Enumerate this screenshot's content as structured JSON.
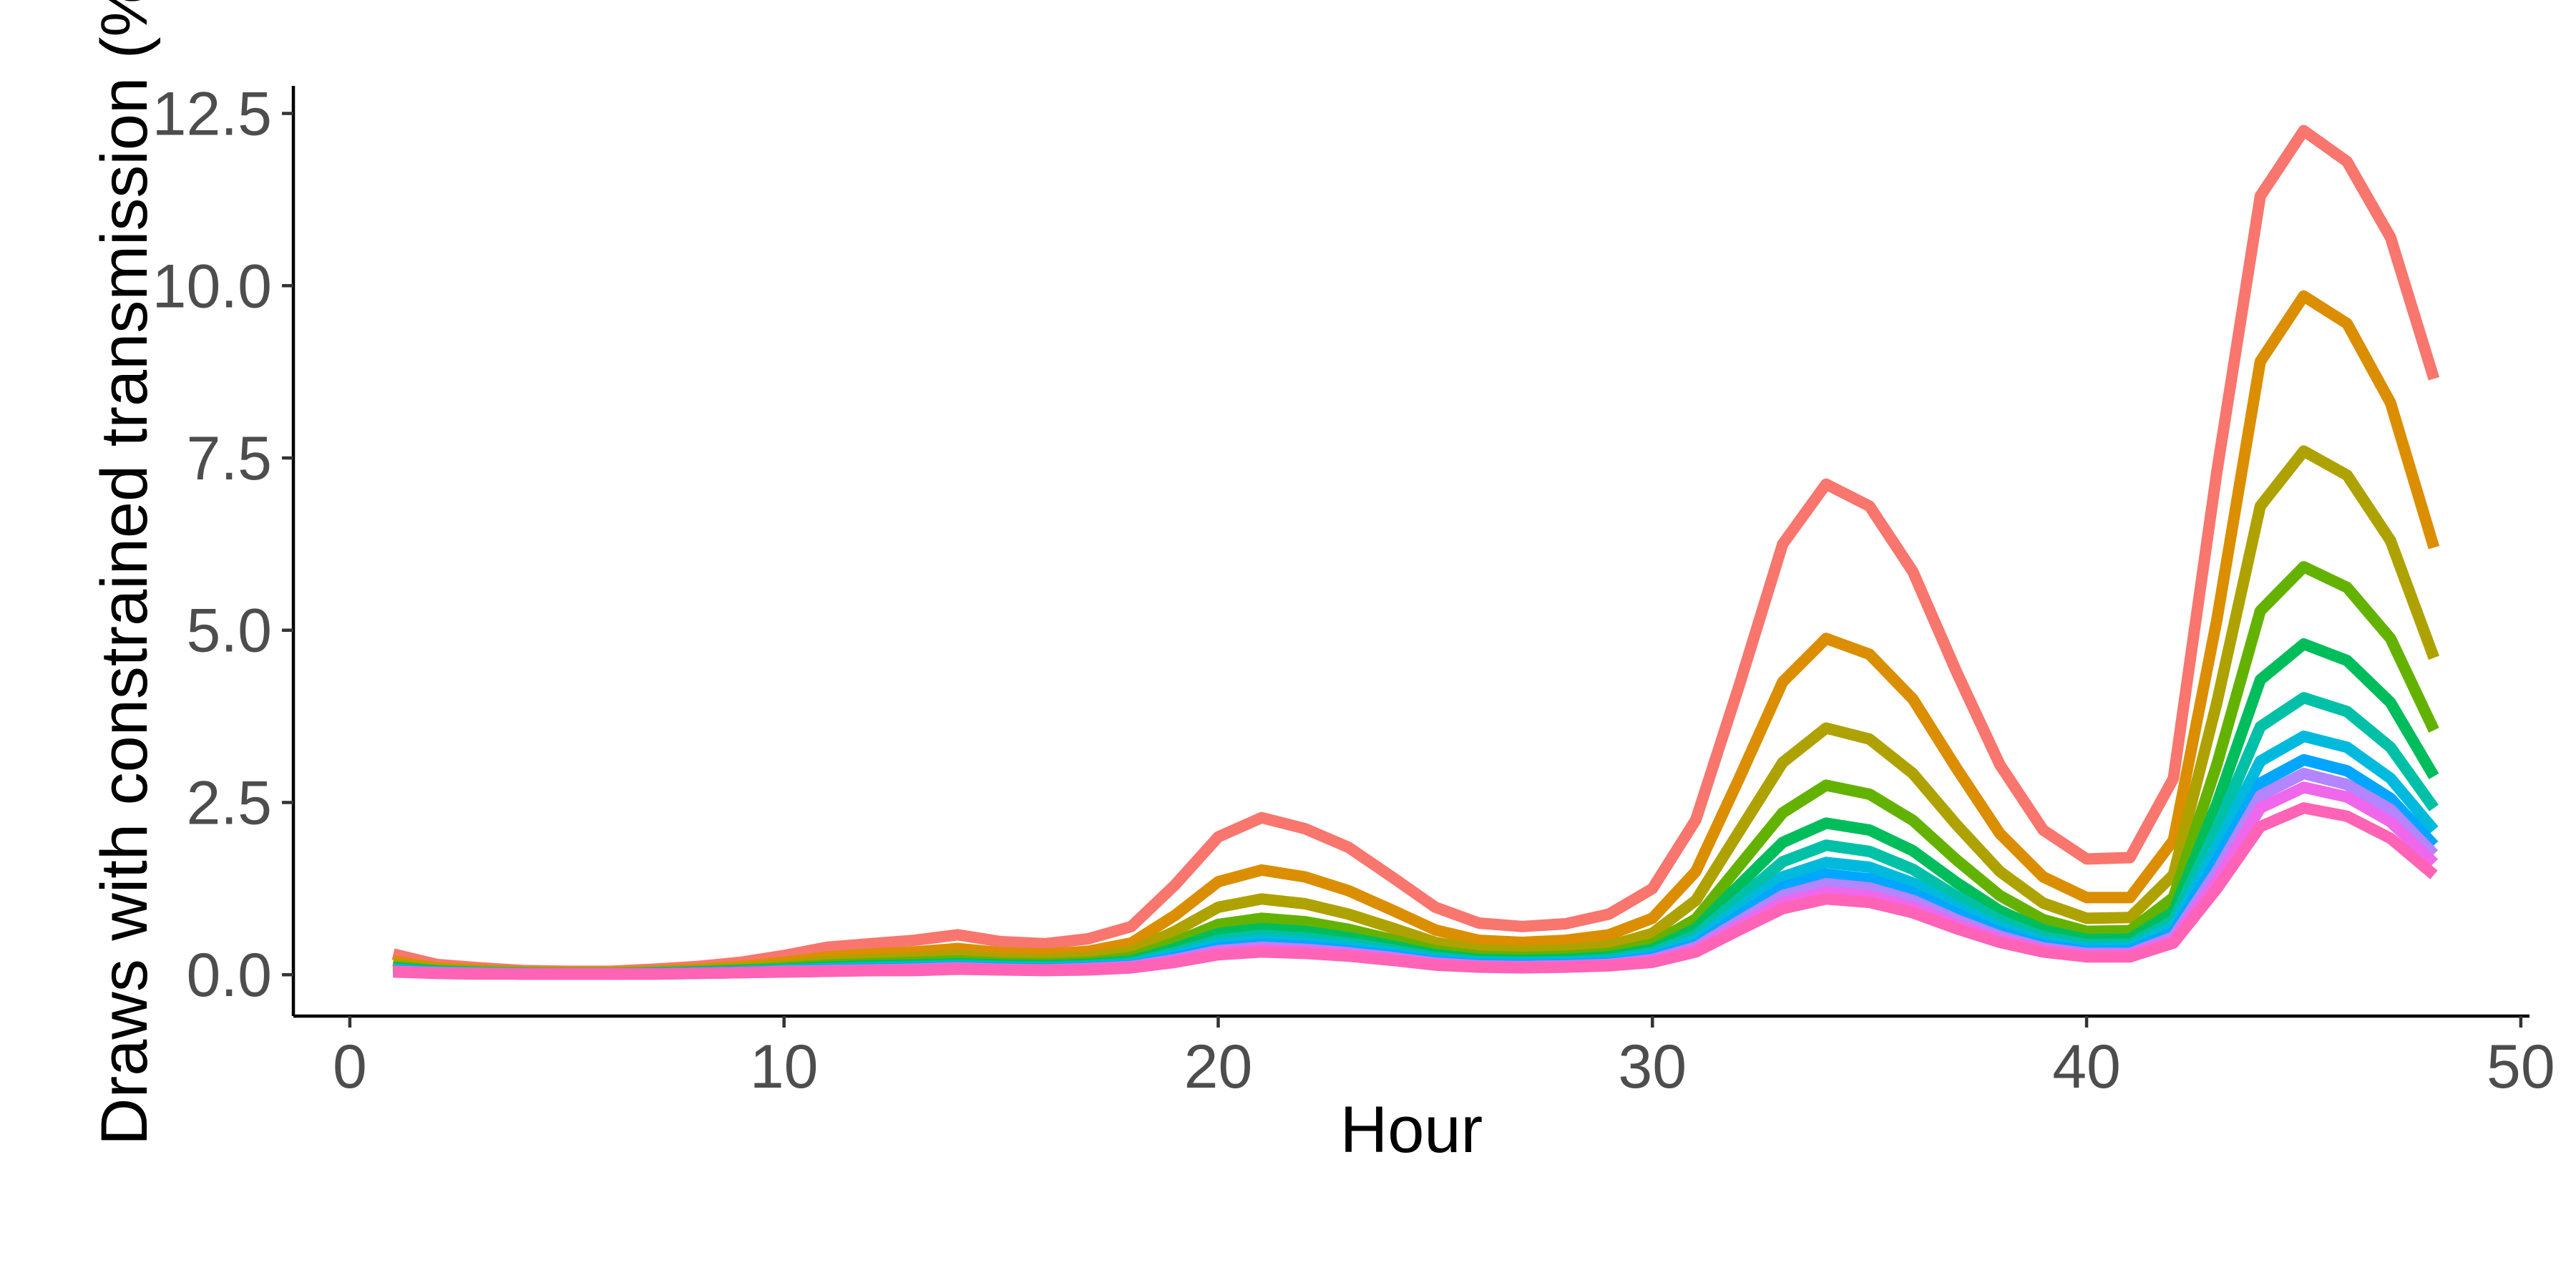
{
  "chart_data": {
    "type": "line",
    "title": "",
    "xlabel": "Hour",
    "ylabel": "Draws with constrained transmission (%)",
    "xlim": [
      -1.3,
      50.2
    ],
    "ylim": [
      -0.6,
      12.9
    ],
    "xticks": [
      0,
      10,
      20,
      30,
      40,
      50
    ],
    "yticks": [
      0.0,
      2.5,
      5.0,
      7.5,
      10.0,
      12.5
    ],
    "xtick_labels": [
      "0",
      "10",
      "20",
      "30",
      "40",
      "50"
    ],
    "ytick_labels": [
      "0.0",
      "2.5",
      "5.0",
      "7.5",
      "10.0",
      "12.5"
    ],
    "grid": false,
    "legend": "none",
    "x": [
      1,
      2,
      3,
      4,
      5,
      6,
      7,
      8,
      9,
      10,
      11,
      12,
      13,
      14,
      15,
      16,
      17,
      18,
      19,
      20,
      21,
      22,
      23,
      24,
      25,
      26,
      27,
      28,
      29,
      30,
      31,
      32,
      33,
      34,
      35,
      36,
      37,
      38,
      39,
      40,
      41,
      42,
      43,
      44,
      45,
      46,
      47,
      48
    ],
    "series": [
      {
        "color": "#F8766D",
        "values": [
          0.3,
          0.15,
          0.1,
          0.06,
          0.05,
          0.05,
          0.08,
          0.12,
          0.18,
          0.28,
          0.4,
          0.45,
          0.5,
          0.58,
          0.48,
          0.45,
          0.52,
          0.7,
          1.3,
          2.0,
          2.28,
          2.12,
          1.85,
          1.42,
          0.98,
          0.75,
          0.7,
          0.74,
          0.88,
          1.25,
          2.25,
          4.2,
          6.25,
          7.12,
          6.8,
          5.85,
          4.4,
          3.05,
          2.1,
          1.68,
          1.7,
          2.85,
          7.3,
          11.3,
          12.25,
          11.8,
          10.7,
          8.65
        ]
      },
      {
        "color": "#DB8E00",
        "values": [
          0.2,
          0.1,
          0.07,
          0.04,
          0.03,
          0.03,
          0.05,
          0.08,
          0.12,
          0.18,
          0.26,
          0.3,
          0.33,
          0.38,
          0.32,
          0.3,
          0.34,
          0.46,
          0.86,
          1.35,
          1.52,
          1.42,
          1.22,
          0.94,
          0.65,
          0.5,
          0.47,
          0.5,
          0.58,
          0.82,
          1.5,
          2.85,
          4.25,
          4.88,
          4.65,
          4.0,
          3.0,
          2.05,
          1.42,
          1.12,
          1.12,
          1.95,
          5.15,
          8.9,
          9.85,
          9.45,
          8.3,
          6.2
        ]
      },
      {
        "color": "#AEA200",
        "values": [
          0.15,
          0.08,
          0.05,
          0.03,
          0.02,
          0.02,
          0.04,
          0.06,
          0.09,
          0.13,
          0.19,
          0.22,
          0.24,
          0.28,
          0.23,
          0.22,
          0.25,
          0.34,
          0.63,
          0.98,
          1.1,
          1.03,
          0.88,
          0.68,
          0.47,
          0.36,
          0.34,
          0.36,
          0.42,
          0.6,
          1.08,
          2.08,
          3.08,
          3.58,
          3.42,
          2.92,
          2.18,
          1.5,
          1.04,
          0.82,
          0.83,
          1.45,
          3.95,
          6.8,
          7.6,
          7.25,
          6.3,
          4.6
        ]
      },
      {
        "color": "#64B200",
        "values": [
          0.12,
          0.06,
          0.04,
          0.02,
          0.02,
          0.02,
          0.03,
          0.05,
          0.07,
          0.1,
          0.14,
          0.16,
          0.18,
          0.2,
          0.17,
          0.16,
          0.18,
          0.25,
          0.47,
          0.73,
          0.82,
          0.77,
          0.66,
          0.51,
          0.35,
          0.27,
          0.25,
          0.27,
          0.31,
          0.45,
          0.81,
          1.58,
          2.35,
          2.75,
          2.62,
          2.24,
          1.67,
          1.15,
          0.8,
          0.63,
          0.64,
          1.12,
          3.05,
          5.28,
          5.92,
          5.62,
          4.88,
          3.55
        ]
      },
      {
        "color": "#00BD5C",
        "values": [
          0.1,
          0.05,
          0.03,
          0.02,
          0.01,
          0.01,
          0.02,
          0.04,
          0.06,
          0.08,
          0.11,
          0.13,
          0.14,
          0.16,
          0.14,
          0.13,
          0.15,
          0.2,
          0.38,
          0.6,
          0.67,
          0.63,
          0.54,
          0.42,
          0.29,
          0.22,
          0.21,
          0.22,
          0.26,
          0.37,
          0.67,
          1.3,
          1.92,
          2.2,
          2.1,
          1.8,
          1.34,
          0.93,
          0.65,
          0.51,
          0.52,
          0.91,
          2.48,
          4.28,
          4.8,
          4.56,
          3.95,
          2.88
        ]
      },
      {
        "color": "#00C1A7",
        "values": [
          0.08,
          0.04,
          0.03,
          0.02,
          0.01,
          0.01,
          0.02,
          0.03,
          0.05,
          0.07,
          0.09,
          0.11,
          0.12,
          0.14,
          0.12,
          0.11,
          0.13,
          0.17,
          0.32,
          0.5,
          0.57,
          0.53,
          0.46,
          0.36,
          0.25,
          0.19,
          0.18,
          0.19,
          0.22,
          0.32,
          0.57,
          1.1,
          1.64,
          1.88,
          1.79,
          1.53,
          1.14,
          0.79,
          0.55,
          0.44,
          0.44,
          0.78,
          2.12,
          3.6,
          4.02,
          3.82,
          3.3,
          2.42
        ]
      },
      {
        "color": "#00BADE",
        "values": [
          0.07,
          0.04,
          0.02,
          0.01,
          0.01,
          0.01,
          0.02,
          0.03,
          0.04,
          0.06,
          0.08,
          0.09,
          0.1,
          0.12,
          0.1,
          0.09,
          0.11,
          0.15,
          0.28,
          0.44,
          0.49,
          0.46,
          0.4,
          0.31,
          0.22,
          0.17,
          0.16,
          0.17,
          0.19,
          0.28,
          0.5,
          0.96,
          1.42,
          1.63,
          1.56,
          1.33,
          0.99,
          0.69,
          0.48,
          0.38,
          0.39,
          0.68,
          1.85,
          3.1,
          3.46,
          3.3,
          2.85,
          2.1
        ]
      },
      {
        "color": "#00A6FF",
        "values": [
          0.06,
          0.03,
          0.02,
          0.01,
          0.01,
          0.01,
          0.02,
          0.03,
          0.04,
          0.05,
          0.07,
          0.08,
          0.09,
          0.11,
          0.09,
          0.08,
          0.1,
          0.13,
          0.25,
          0.39,
          0.44,
          0.41,
          0.35,
          0.28,
          0.19,
          0.15,
          0.14,
          0.15,
          0.17,
          0.25,
          0.44,
          0.86,
          1.27,
          1.46,
          1.39,
          1.19,
          0.89,
          0.62,
          0.43,
          0.34,
          0.35,
          0.61,
          1.66,
          2.78,
          3.12,
          2.96,
          2.56,
          1.88
        ]
      },
      {
        "color": "#B385FF",
        "values": [
          0.05,
          0.03,
          0.02,
          0.01,
          0.01,
          0.01,
          0.01,
          0.02,
          0.03,
          0.05,
          0.06,
          0.07,
          0.08,
          0.1,
          0.08,
          0.07,
          0.09,
          0.12,
          0.22,
          0.35,
          0.4,
          0.37,
          0.32,
          0.25,
          0.17,
          0.13,
          0.12,
          0.13,
          0.15,
          0.22,
          0.4,
          0.78,
          1.15,
          1.32,
          1.26,
          1.08,
          0.8,
          0.56,
          0.39,
          0.31,
          0.31,
          0.55,
          1.5,
          2.6,
          2.92,
          2.76,
          2.4,
          1.75
        ]
      },
      {
        "color": "#EF67EB",
        "values": [
          0.05,
          0.02,
          0.02,
          0.01,
          0.01,
          0.01,
          0.01,
          0.02,
          0.03,
          0.04,
          0.05,
          0.06,
          0.07,
          0.09,
          0.07,
          0.07,
          0.08,
          0.11,
          0.2,
          0.32,
          0.36,
          0.34,
          0.29,
          0.23,
          0.16,
          0.12,
          0.11,
          0.12,
          0.14,
          0.2,
          0.36,
          0.71,
          1.05,
          1.2,
          1.15,
          0.98,
          0.73,
          0.51,
          0.36,
          0.28,
          0.29,
          0.5,
          1.37,
          2.42,
          2.72,
          2.58,
          2.22,
          1.62
        ]
      },
      {
        "color": "#FF63B6",
        "values": [
          0.04,
          0.02,
          0.01,
          0.01,
          0.01,
          0.01,
          0.01,
          0.02,
          0.03,
          0.04,
          0.05,
          0.06,
          0.06,
          0.08,
          0.07,
          0.06,
          0.07,
          0.1,
          0.18,
          0.29,
          0.33,
          0.31,
          0.27,
          0.21,
          0.14,
          0.11,
          0.1,
          0.11,
          0.13,
          0.18,
          0.33,
          0.65,
          0.96,
          1.1,
          1.05,
          0.9,
          0.67,
          0.47,
          0.33,
          0.26,
          0.26,
          0.46,
          1.25,
          2.15,
          2.42,
          2.3,
          1.98,
          1.45
        ]
      }
    ]
  }
}
